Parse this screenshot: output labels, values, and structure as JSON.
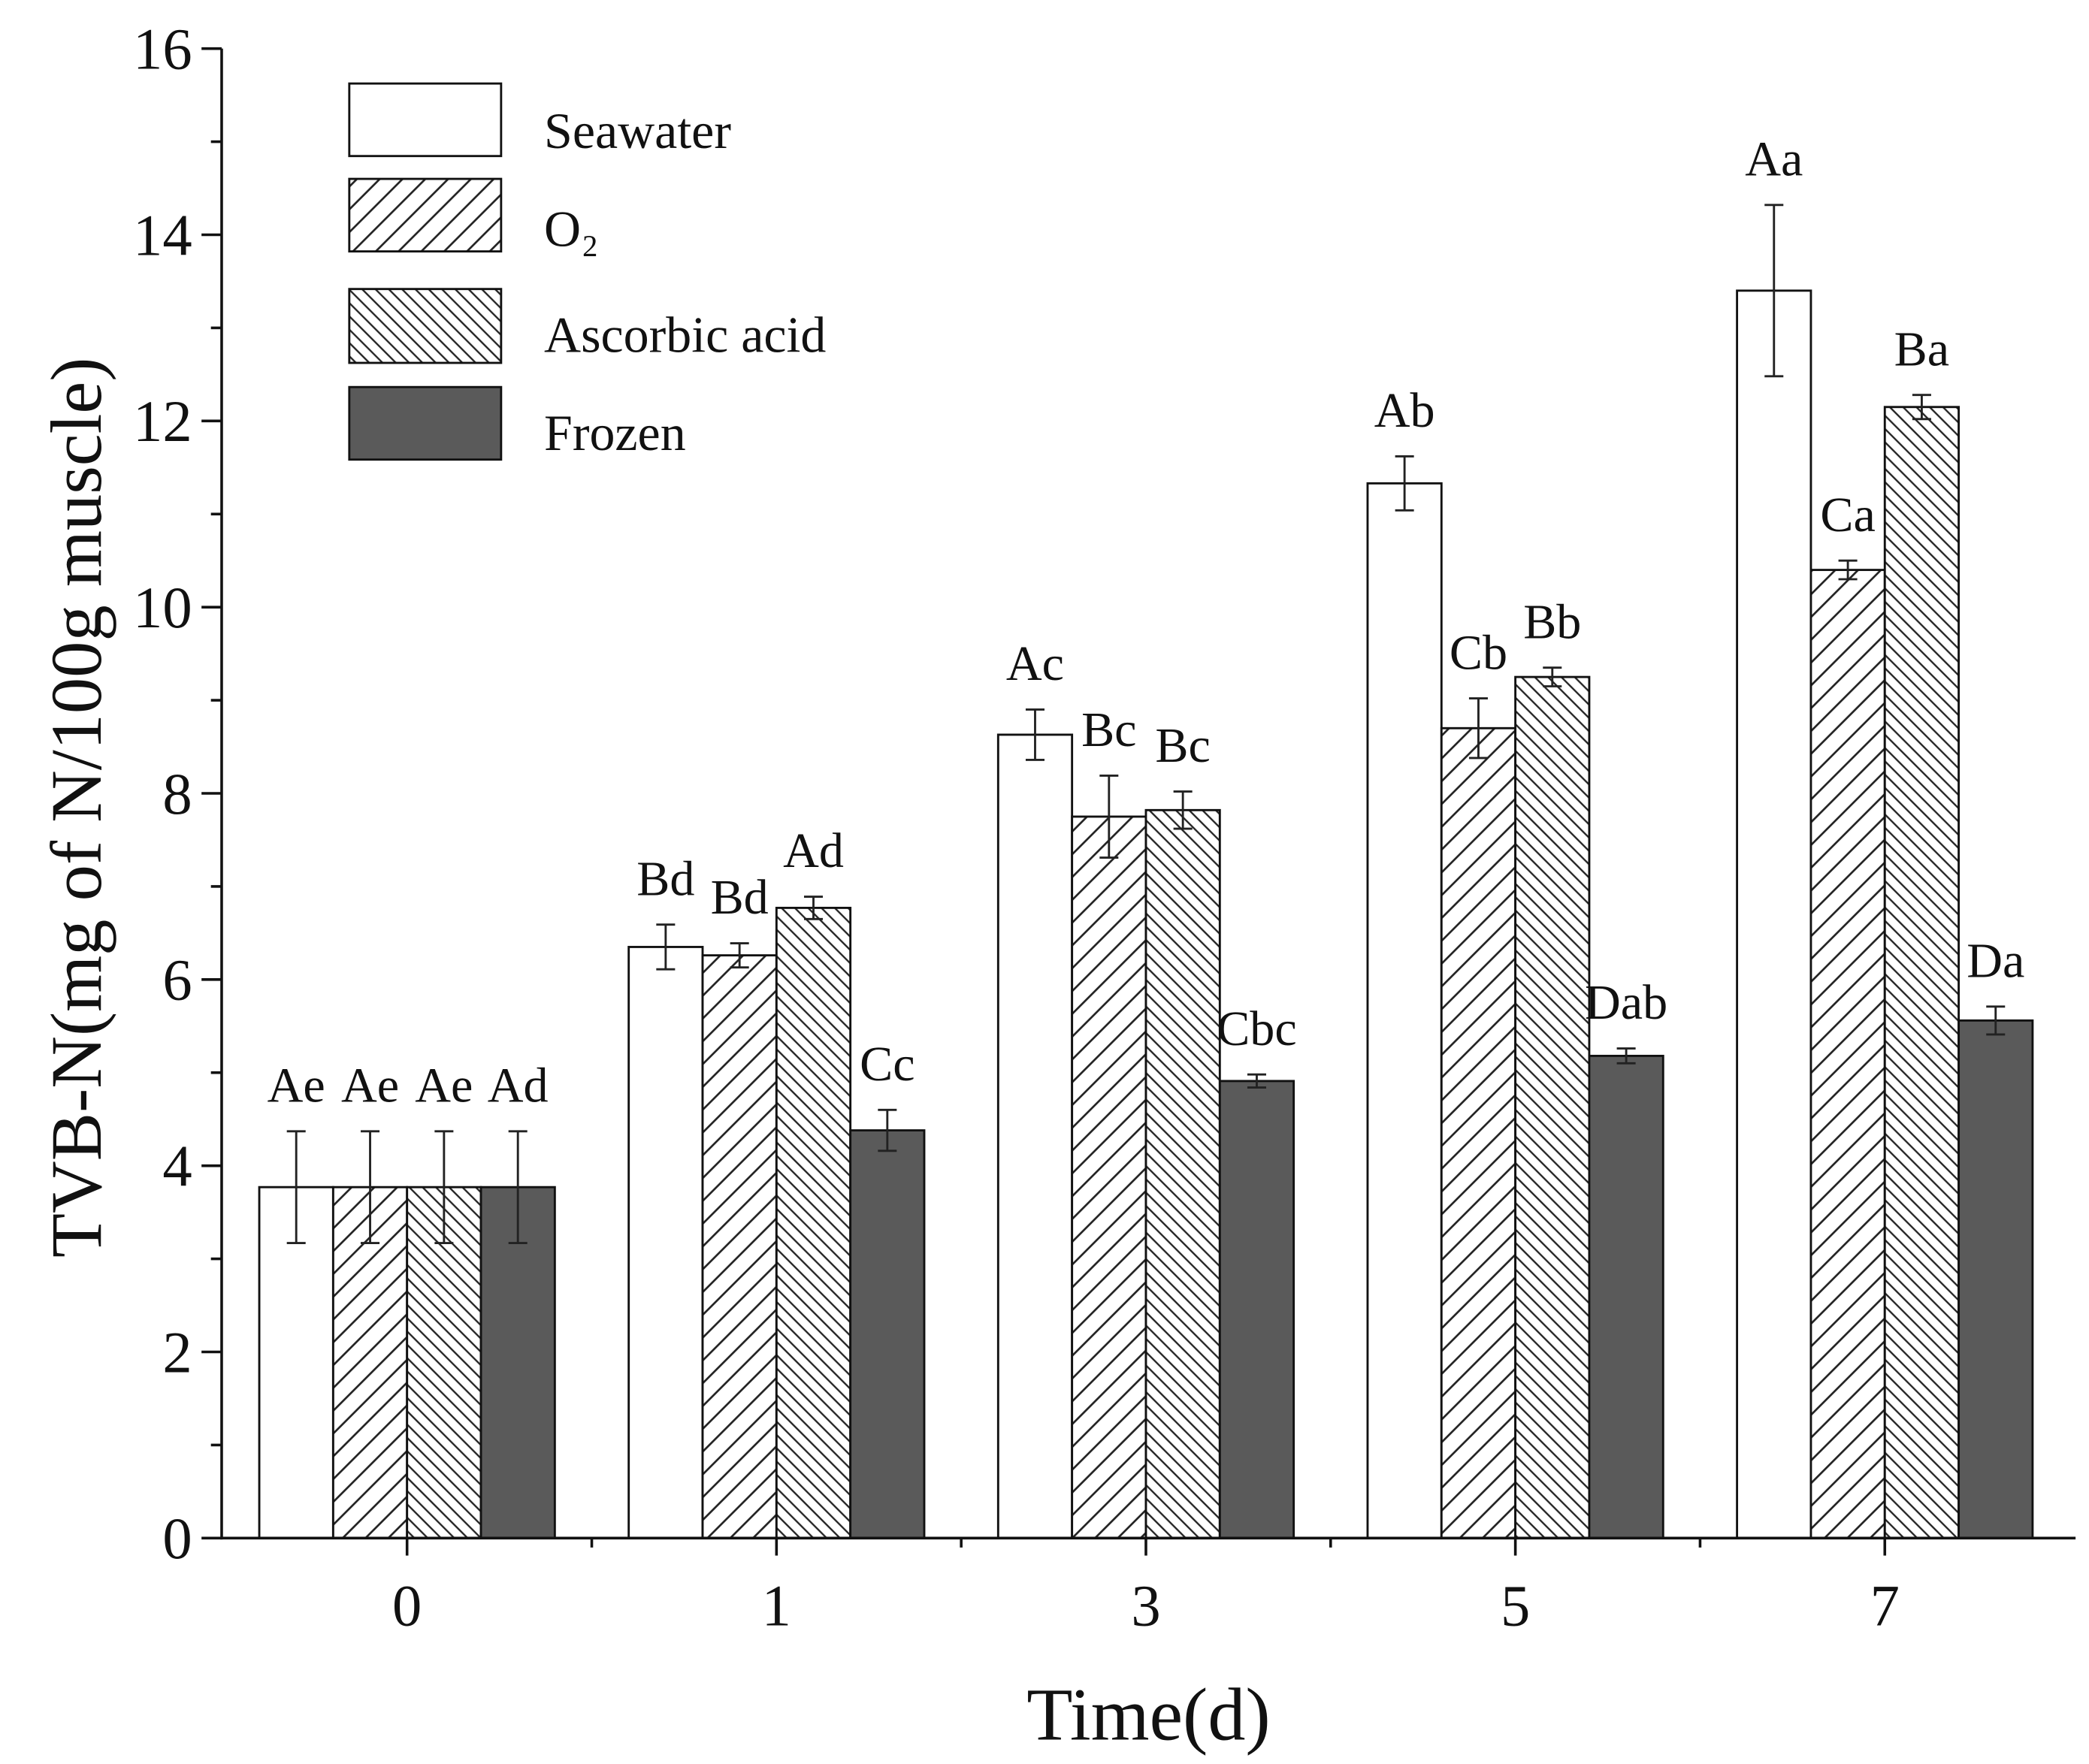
{
  "chart_data": {
    "type": "bar",
    "xlabel": "Time(d)",
    "ylabel": "TVB-N(mg of N/100g muscle)",
    "categories": [
      "0",
      "1",
      "3",
      "5",
      "7"
    ],
    "ylim": [
      0,
      16
    ],
    "yticks": [
      0,
      2,
      4,
      6,
      8,
      10,
      12,
      14,
      16
    ],
    "legend": "top-left",
    "series": [
      {
        "name": "Seawater",
        "fill": "#ffffff",
        "values": [
          3.77,
          6.35,
          8.63,
          11.33,
          13.4
        ],
        "errors": [
          0.6,
          0.24,
          0.27,
          0.29,
          0.92
        ],
        "labels": [
          "Ae",
          "Bd",
          "Ac",
          "Ab",
          "Aa"
        ]
      },
      {
        "name": "O₂",
        "fill": "#ffffff",
        "values": [
          3.77,
          6.26,
          7.75,
          8.7,
          10.4
        ],
        "errors": [
          0.6,
          0.13,
          0.44,
          0.32,
          0.1
        ],
        "labels": [
          "Ae",
          "Bd",
          "Bc",
          "Cb",
          "Ca"
        ]
      },
      {
        "name": "Ascorbic acid",
        "fill": "#ffffff",
        "values": [
          3.77,
          6.77,
          7.82,
          9.25,
          12.15
        ],
        "errors": [
          0.6,
          0.12,
          0.2,
          0.1,
          0.13
        ],
        "labels": [
          "Ae",
          "Ad",
          "Bc",
          "Bb",
          "Ba"
        ]
      },
      {
        "name": "Frozen",
        "fill": "#5a5a5a",
        "values": [
          3.77,
          4.38,
          4.91,
          5.18,
          5.56
        ],
        "errors": [
          0.6,
          0.22,
          0.07,
          0.08,
          0.15
        ],
        "labels": [
          "Ad",
          "Cc",
          "Cbc",
          "Dab",
          "Da"
        ]
      }
    ]
  }
}
